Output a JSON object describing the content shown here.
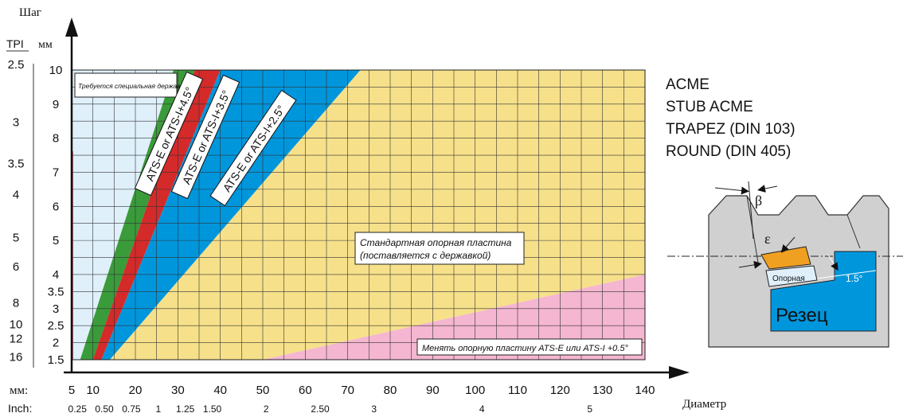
{
  "labels": {
    "y_axis_title": "Шаг",
    "tpi_header": "TPI",
    "mm_header": "мм",
    "x_axis_title": "Диаметр",
    "x_mm_row_label": "мм:",
    "x_inch_row_label": "Inch:",
    "special_holder": "Требуется специальная державка",
    "standard_shim_line1": "Стандартная опорная пластина",
    "standard_shim_line2": "(поставляется с державкой)",
    "change_shim": "Менять опорную пластину ATS-E или ATS-I +0.5°",
    "band_green": "ATS-E or ATS-I+4.5°",
    "band_red": "ATS-E or ATS-I+3.5°",
    "band_blue": "ATS-E or ATS-I+2.5°"
  },
  "thread_types": [
    "ACME",
    "STUB ACME",
    "TRAPEZ (DIN 103)",
    "ROUND (DIN 405)"
  ],
  "tool_diagram": {
    "beta": "β",
    "epsilon": "ε",
    "shim": "Опорная",
    "angle": "1.5°",
    "cutter": "Резец"
  },
  "chart_data": {
    "type": "area",
    "x_mm_ticks": [
      "5",
      "10",
      "20",
      "30",
      "40",
      "50",
      "60",
      "70",
      "80",
      "90",
      "100",
      "110",
      "120",
      "130",
      "140"
    ],
    "x_inch_ticks": [
      "0.25",
      "0.50",
      "0.75",
      "1",
      "1.25",
      "1.50",
      "2",
      "2.50",
      "3",
      "4",
      "5"
    ],
    "x_inch_values_mm": [
      6.35,
      12.7,
      19.05,
      25.4,
      31.75,
      38.1,
      50.8,
      63.5,
      76.2,
      101.6,
      127
    ],
    "y_mm_ticks": [
      "1.5",
      "2",
      "2.5",
      "3",
      "3.5",
      "4",
      "5",
      "6",
      "7",
      "8",
      "9",
      "10"
    ],
    "y_tpi_ticks": [
      "16",
      "12",
      "10",
      "8",
      "6",
      "5",
      "4",
      "3.5",
      "3",
      "2.5"
    ],
    "y_tpi_values_mm": [
      1.5875,
      2.1167,
      2.54,
      3.175,
      4.233,
      5.08,
      6.35,
      7.257,
      8.467,
      10.16
    ],
    "xlim": [
      5,
      140
    ],
    "ylim": [
      1.5,
      10
    ],
    "regions": [
      {
        "name": "special_holder",
        "color": "#dff0fb",
        "polygon": [
          [
            5,
            1.5
          ],
          [
            7,
            1.5
          ],
          [
            29,
            10
          ],
          [
            5,
            10
          ]
        ]
      },
      {
        "name": "ATS-E or ATS-I+4.5°",
        "color": "#3a9b3a",
        "polygon": [
          [
            7,
            1.5
          ],
          [
            10,
            1.5
          ],
          [
            34,
            10
          ],
          [
            29,
            10
          ]
        ]
      },
      {
        "name": "ATS-E or ATS-I+3.5°",
        "color": "#d42a2a",
        "polygon": [
          [
            10,
            1.5
          ],
          [
            12,
            1.5
          ],
          [
            40,
            10
          ],
          [
            34,
            10
          ]
        ]
      },
      {
        "name": "ATS-E or ATS-I+2.5°",
        "color": "#0096dc",
        "polygon": [
          [
            12,
            1.5
          ],
          [
            14,
            1.5
          ],
          [
            73,
            10
          ],
          [
            40,
            10
          ]
        ]
      },
      {
        "name": "standard_shim",
        "color": "#f6e08a",
        "polygon": [
          [
            14,
            1.5
          ],
          [
            50,
            1.5
          ],
          [
            140,
            4
          ],
          [
            140,
            10
          ],
          [
            73,
            10
          ]
        ]
      },
      {
        "name": "change_shim",
        "color": "#f4b6d0",
        "polygon": [
          [
            50,
            1.5
          ],
          [
            140,
            1.5
          ],
          [
            140,
            4
          ]
        ]
      }
    ]
  }
}
